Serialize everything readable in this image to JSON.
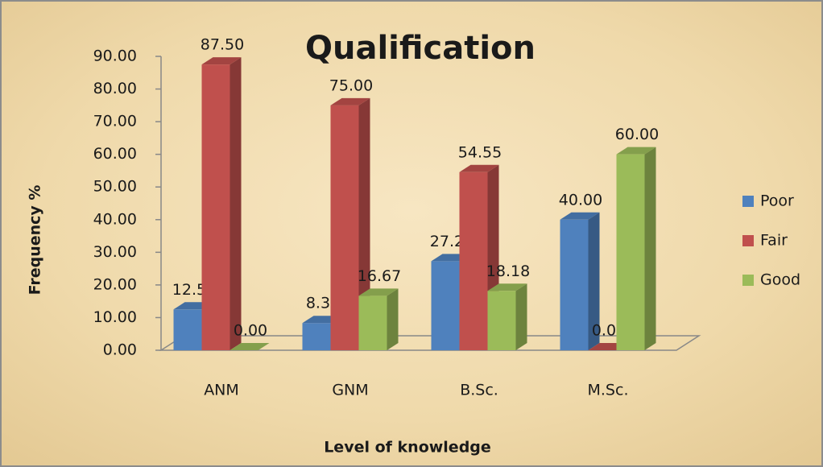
{
  "chart_data": {
    "type": "bar3d",
    "title": "Qualification",
    "x_label": "Level of knowledge",
    "y_label": "Frequency %",
    "categories": [
      "ANM",
      "GNM",
      "B.Sc.",
      "M.Sc."
    ],
    "series": [
      {
        "name": "Poor",
        "color": "#4f81bd",
        "values": [
          12.5,
          8.33,
          27.27,
          40
        ],
        "value_labels": [
          "12.50",
          "8.33",
          "27.27",
          "40.00"
        ]
      },
      {
        "name": "Fair",
        "color": "#c0504d",
        "values": [
          87.5,
          75,
          54.55,
          0
        ],
        "value_labels": [
          "87.50",
          "75.00",
          "54.55",
          "0.00"
        ]
      },
      {
        "name": "Good",
        "color": "#9bbb59",
        "values": [
          0,
          16.67,
          18.18,
          60
        ],
        "value_labels": [
          "0.00",
          "16.67",
          "18.18",
          "60.00"
        ]
      }
    ],
    "ylim": [
      0,
      90
    ],
    "yticks": [
      {
        "value": 0,
        "label": "0.00"
      },
      {
        "value": 10,
        "label": "10.00"
      },
      {
        "value": 20,
        "label": "20.00"
      },
      {
        "value": 30,
        "label": "30.00"
      },
      {
        "value": 40,
        "label": "40.00"
      },
      {
        "value": 50,
        "label": "50.00"
      },
      {
        "value": 60,
        "label": "60.00"
      },
      {
        "value": 70,
        "label": "70.00"
      },
      {
        "value": 80,
        "label": "80.00"
      },
      {
        "value": 90,
        "label": "90.00"
      }
    ],
    "legend": "right"
  }
}
